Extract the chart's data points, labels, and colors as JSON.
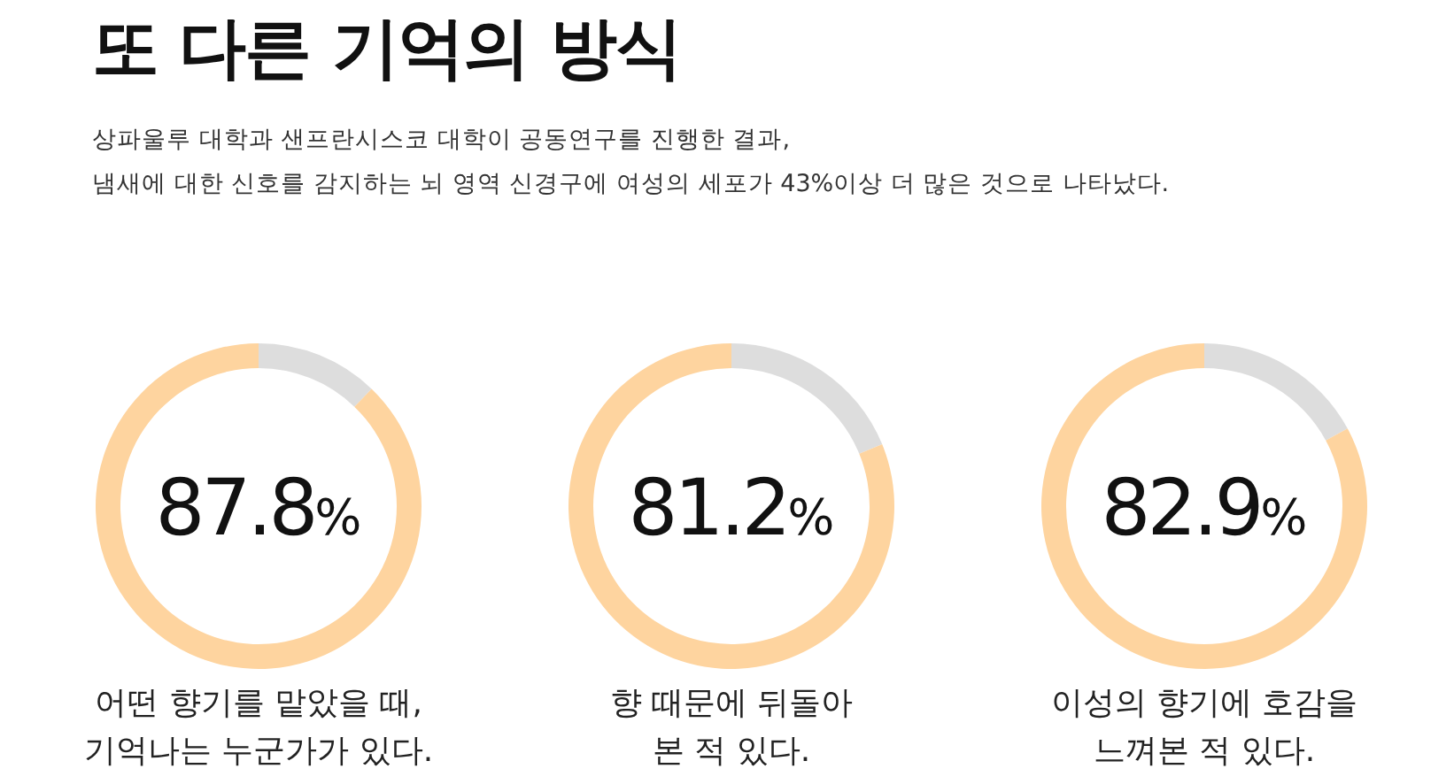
{
  "chart_data": [
    {
      "type": "other",
      "title": "또 다른 기억의 방식",
      "subtitle": "상파울루 대학과 샌프란시스코 대학이 공동연구를 진행한 결과,\n냄새에 대한 신호를 감지하는 뇌 영역 신경구에 여성의 세포가 43%이상 더 많은 것으로 나타났다."
    },
    {
      "type": "donut",
      "categories": [
        null,
        null
      ],
      "values": [
        12.2,
        87.8
      ],
      "colors": [
        "#dddddd",
        "#fed49f"
      ],
      "value_labels": [
        null,
        "87.8%"
      ],
      "xlabel": "어떤 향기를 맡았을 때,\n기억나는 누군가가 있다."
    },
    {
      "type": "donut",
      "categories": [
        null,
        null
      ],
      "values": [
        18.8,
        81.2
      ],
      "colors": [
        "#dddddd",
        "#fed49f"
      ],
      "value_labels": [
        null,
        "81.2%"
      ],
      "xlabel": "향 때문에 뒤돌아\n본 적 있다."
    },
    {
      "type": "donut",
      "categories": [
        null,
        null
      ],
      "values": [
        17.1,
        82.9
      ],
      "colors": [
        "#dddddd",
        "#fed49f"
      ],
      "value_labels": [
        null,
        "82.9%"
      ],
      "xlabel": "이성의 향기에 호감을\n느껴본 적 있다."
    }
  ]
}
